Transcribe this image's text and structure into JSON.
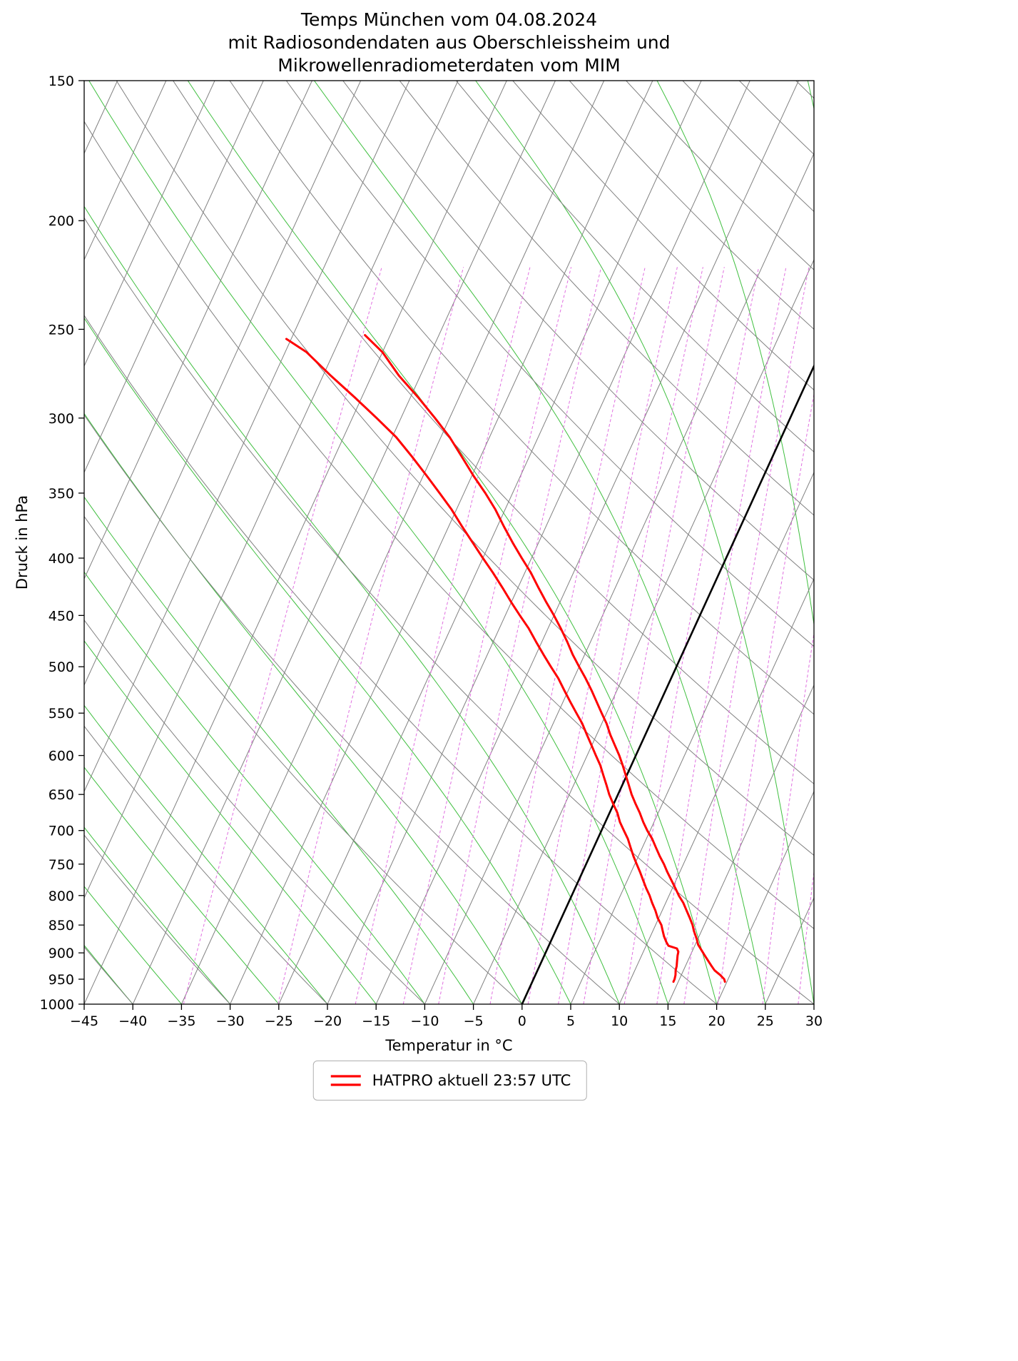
{
  "title": {
    "lines": [
      "Temps München vom 04.08.2024",
      "mit Radiosondendaten aus Oberschleissheim und",
      "Mikrowellenradiometerdaten vom MIM"
    ]
  },
  "axes": {
    "xlabel": "Temperatur in °C",
    "ylabel": "Druck in hPa",
    "x_ticks": [
      -45,
      -40,
      -35,
      -30,
      -25,
      -20,
      -15,
      -10,
      -5,
      0,
      5,
      10,
      15,
      20,
      25,
      30
    ],
    "y_ticks": [
      150,
      200,
      250,
      300,
      350,
      400,
      450,
      500,
      550,
      600,
      650,
      700,
      750,
      800,
      850,
      900,
      950,
      1000
    ]
  },
  "legend": {
    "label": "HATPRO aktuell 23:57 UTC",
    "position": "bottom-center"
  },
  "colors": {
    "temperature_curve": "#ff0000",
    "isotherm": "#808080",
    "zero_isotherm": "#000000",
    "dry_adiabat": "#808080",
    "moist_adiabat": "#3fbf3f",
    "mixing_ratio": "#e06fe0",
    "spine": "#000000"
  },
  "chart_data": {
    "type": "line",
    "diagram": "skew-T log-p",
    "title": "Temps München vom 04.08.2024 mit Radiosondendaten aus Oberschleissheim und Mikrowellenradiometerdaten vom MIM",
    "xlabel": "Temperatur in °C",
    "ylabel": "Druck in hPa",
    "x_range_c": [
      -45,
      30
    ],
    "pressure_range_hpa": [
      150,
      1000
    ],
    "skew_c_per_decade": 52.7,
    "grid": true,
    "legend_entries": [
      "HATPRO aktuell 23:57 UTC"
    ],
    "series": [
      {
        "name": "HATPRO Temperatur",
        "color": "#ff0000",
        "units": {
          "pressure": "hPa",
          "temperature": "°C"
        },
        "points": [
          [
            955,
            19.8
          ],
          [
            950,
            19.6
          ],
          [
            942,
            19.0
          ],
          [
            933,
            18.2
          ],
          [
            925,
            17.7
          ],
          [
            915,
            17.1
          ],
          [
            905,
            16.5
          ],
          [
            895,
            15.9
          ],
          [
            885,
            15.3
          ],
          [
            875,
            14.9
          ],
          [
            860,
            14.2
          ],
          [
            850,
            13.8
          ],
          [
            838,
            13.2
          ],
          [
            825,
            12.5
          ],
          [
            812,
            11.8
          ],
          [
            800,
            11.0
          ],
          [
            788,
            10.3
          ],
          [
            775,
            9.5
          ],
          [
            762,
            8.7
          ],
          [
            750,
            8.0
          ],
          [
            738,
            7.2
          ],
          [
            725,
            6.4
          ],
          [
            712,
            5.6
          ],
          [
            700,
            4.7
          ],
          [
            688,
            3.9
          ],
          [
            675,
            3.1
          ],
          [
            662,
            2.2
          ],
          [
            650,
            1.4
          ],
          [
            638,
            0.7
          ],
          [
            625,
            -0.1
          ],
          [
            612,
            -0.9
          ],
          [
            600,
            -1.7
          ],
          [
            588,
            -2.6
          ],
          [
            575,
            -3.6
          ],
          [
            562,
            -4.5
          ],
          [
            550,
            -5.5
          ],
          [
            538,
            -6.5
          ],
          [
            525,
            -7.6
          ],
          [
            512,
            -8.8
          ],
          [
            500,
            -10.0
          ],
          [
            488,
            -11.2
          ],
          [
            475,
            -12.4
          ],
          [
            462,
            -13.7
          ],
          [
            450,
            -15.0
          ],
          [
            438,
            -16.4
          ],
          [
            425,
            -17.9
          ],
          [
            412,
            -19.4
          ],
          [
            400,
            -21.0
          ],
          [
            388,
            -22.6
          ],
          [
            375,
            -24.3
          ],
          [
            362,
            -26.0
          ],
          [
            350,
            -27.8
          ],
          [
            338,
            -29.8
          ],
          [
            325,
            -31.9
          ],
          [
            312,
            -34.1
          ],
          [
            300,
            -36.5
          ],
          [
            288,
            -39.1
          ],
          [
            275,
            -42.2
          ],
          [
            262,
            -45.0
          ],
          [
            253,
            -47.6
          ]
        ]
      },
      {
        "name": "HATPRO Taupunkt",
        "color": "#ff0000",
        "units": {
          "pressure": "hPa",
          "temperature": "°C"
        },
        "points": [
          [
            955,
            14.5
          ],
          [
            950,
            14.5
          ],
          [
            942,
            14.4
          ],
          [
            933,
            14.2
          ],
          [
            925,
            14.1
          ],
          [
            915,
            13.9
          ],
          [
            905,
            13.7
          ],
          [
            898,
            13.6
          ],
          [
            892,
            13.3
          ],
          [
            887,
            12.3
          ],
          [
            880,
            11.9
          ],
          [
            870,
            11.4
          ],
          [
            860,
            11.0
          ],
          [
            850,
            10.6
          ],
          [
            838,
            9.9
          ],
          [
            825,
            9.3
          ],
          [
            812,
            8.6
          ],
          [
            800,
            8.0
          ],
          [
            788,
            7.3
          ],
          [
            775,
            6.6
          ],
          [
            762,
            5.9
          ],
          [
            750,
            5.2
          ],
          [
            738,
            4.5
          ],
          [
            725,
            3.8
          ],
          [
            712,
            3.1
          ],
          [
            700,
            2.3
          ],
          [
            688,
            1.5
          ],
          [
            675,
            0.8
          ],
          [
            662,
            -0.1
          ],
          [
            650,
            -0.9
          ],
          [
            638,
            -1.6
          ],
          [
            625,
            -2.4
          ],
          [
            612,
            -3.2
          ],
          [
            600,
            -4.1
          ],
          [
            588,
            -5.0
          ],
          [
            575,
            -6.0
          ],
          [
            562,
            -7.0
          ],
          [
            550,
            -8.1
          ],
          [
            538,
            -9.2
          ],
          [
            525,
            -10.4
          ],
          [
            512,
            -11.6
          ],
          [
            500,
            -12.9
          ],
          [
            488,
            -14.2
          ],
          [
            475,
            -15.6
          ],
          [
            462,
            -17.0
          ],
          [
            450,
            -18.5
          ],
          [
            438,
            -20.0
          ],
          [
            425,
            -21.6
          ],
          [
            412,
            -23.3
          ],
          [
            400,
            -25.0
          ],
          [
            388,
            -26.7
          ],
          [
            375,
            -28.6
          ],
          [
            362,
            -30.5
          ],
          [
            350,
            -32.5
          ],
          [
            338,
            -34.6
          ],
          [
            325,
            -37.0
          ],
          [
            312,
            -39.6
          ],
          [
            300,
            -42.5
          ],
          [
            288,
            -45.6
          ],
          [
            275,
            -49.2
          ],
          [
            262,
            -52.8
          ],
          [
            255,
            -55.5
          ]
        ]
      }
    ],
    "reference_lines": {
      "isotherms_c": {
        "start": -90,
        "end": 30,
        "step": 5,
        "highlight": 0
      },
      "dry_adiabats_theta_c": {
        "start": -40,
        "end": 180,
        "step": 10
      },
      "moist_adiabats_thetaw_c": {
        "start": -40,
        "end": 60,
        "step": 5
      },
      "mixing_ratio_g_per_kg": [
        0.2,
        0.5,
        1,
        1.5,
        2,
        3,
        4,
        5,
        6,
        8,
        10,
        12,
        15,
        20,
        25,
        30
      ],
      "mixing_ratio_top_hpa": 210
    }
  }
}
